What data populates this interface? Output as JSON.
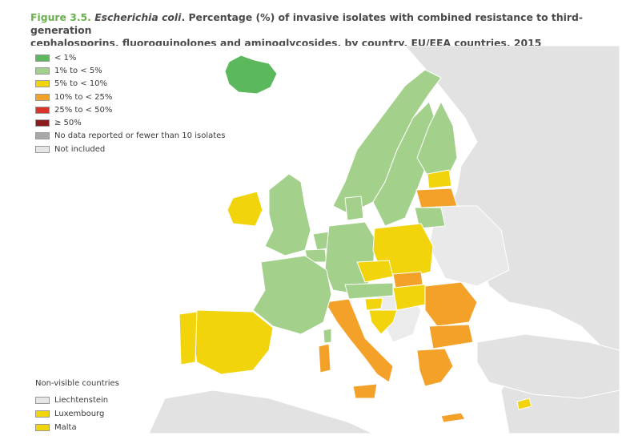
{
  "title": {
    "figure_label": "Figure 3.5.",
    "organism": "Escherichia coli",
    "line1_rest": ". Percentage (%) of invasive isolates with combined resistance to third-generation",
    "line2": "cephalosporins, fluoroquinolones and aminoglycosides, by country, EU/EEA countries, 2015"
  },
  "legend": [
    {
      "label": "< 1%",
      "color": "#5cb85c",
      "icon": "lt1-swatch"
    },
    {
      "label": "1% to < 5%",
      "color": "#a3d08a",
      "icon": "1to5-swatch"
    },
    {
      "label": "5% to < 10%",
      "color": "#f2d40c",
      "icon": "5to10-swatch"
    },
    {
      "label": "10% to < 25%",
      "color": "#f4a12a",
      "icon": "10to25-swatch"
    },
    {
      "label": "25% to < 50%",
      "color": "#d9342b",
      "icon": "25to50-swatch"
    },
    {
      "label": "≥ 50%",
      "color": "#8b1a1a",
      "icon": "gte50-swatch"
    },
    {
      "label": "No data reported or fewer than 10 isolates",
      "color": "#a9a9a9",
      "icon": "nodata-swatch"
    },
    {
      "label": "Not included",
      "color": "#e6e6e6",
      "icon": "notincluded-swatch"
    }
  ],
  "non_visible": {
    "title": "Non-visible countries",
    "items": [
      {
        "label": "Liechtenstein",
        "color": "#e6e6e6"
      },
      {
        "label": "Luxembourg",
        "color": "#f2d40c"
      },
      {
        "label": "Malta",
        "color": "#f2d40c"
      }
    ]
  },
  "colors": {
    "background_land": "#e2e2e2",
    "sea": "#ffffff",
    "border": "#ffffff"
  }
}
